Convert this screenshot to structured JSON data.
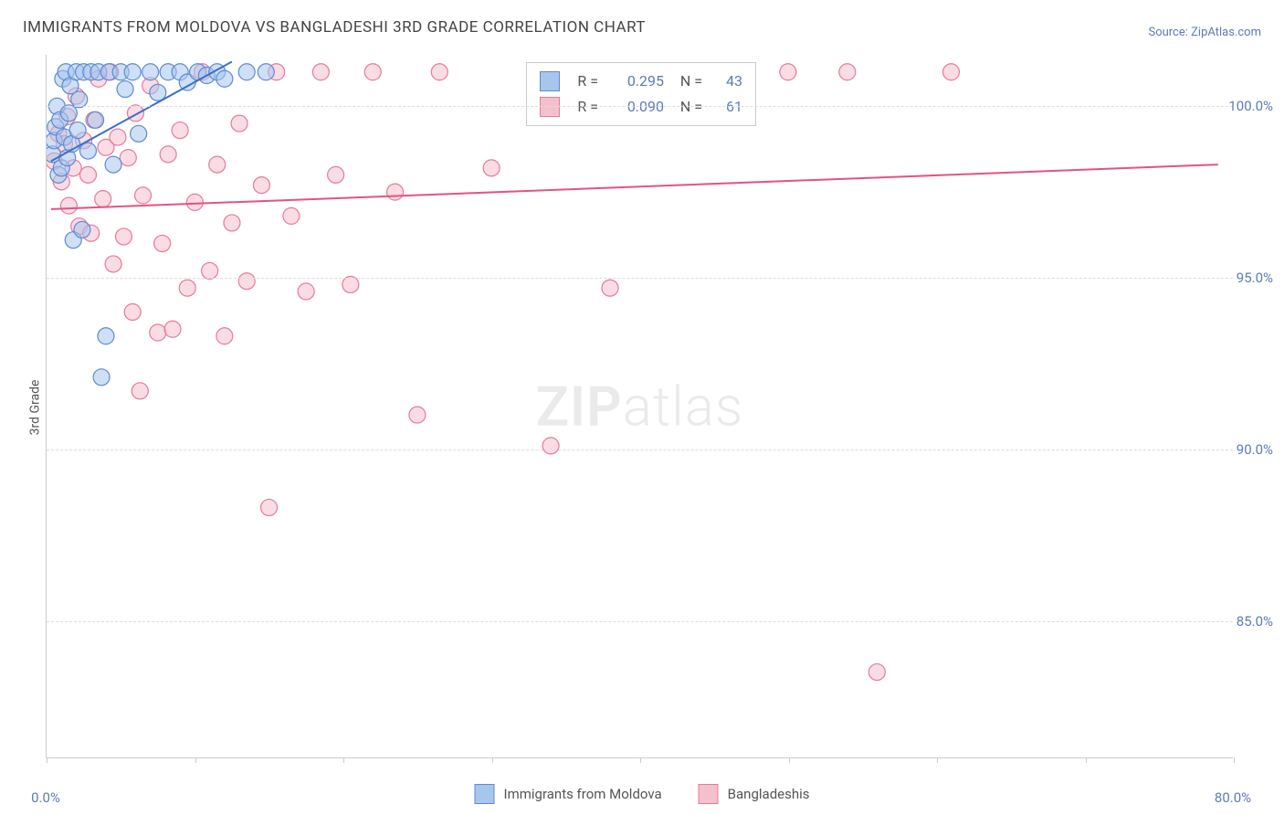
{
  "title": "IMMIGRANTS FROM MOLDOVA VS BANGLADESHI 3RD GRADE CORRELATION CHART",
  "source": "Source: ZipAtlas.com",
  "ylabel": "3rd Grade",
  "watermark_bold": "ZIP",
  "watermark_light": "atlas",
  "chart": {
    "type": "scatter",
    "xlim": [
      0,
      80
    ],
    "ylim": [
      81,
      101.5
    ],
    "x_ticks": [
      0,
      10,
      20,
      30,
      40,
      50,
      60,
      70,
      80
    ],
    "x_tick_labels": {
      "0": "0.0%",
      "80": "80.0%"
    },
    "y_gridlines": [
      85,
      90,
      95,
      100
    ],
    "y_tick_labels": {
      "85": "85.0%",
      "90": "90.0%",
      "95": "95.0%",
      "100": "100.0%"
    },
    "background_color": "#ffffff",
    "grid_color": "#dddddd",
    "axis_color": "#cccccc",
    "tick_label_color": "#5b7bb8",
    "marker_radius": 9,
    "marker_opacity": 0.55,
    "line_width": 2,
    "series": [
      {
        "name": "Immigrants from Moldova",
        "color_fill": "#a8c5ec",
        "color_stroke": "#5b8bd4",
        "line_color": "#3a6fc7",
        "R": "0.295",
        "N": "43",
        "regression": {
          "x1": 0.3,
          "y1": 98.4,
          "x2": 12.5,
          "y2": 101.3
        },
        "points": [
          [
            0.4,
            98.6
          ],
          [
            0.5,
            99.0
          ],
          [
            0.6,
            99.4
          ],
          [
            0.7,
            100.0
          ],
          [
            0.8,
            98.0
          ],
          [
            0.9,
            99.6
          ],
          [
            1.0,
            98.2
          ],
          [
            1.1,
            100.8
          ],
          [
            1.2,
            99.1
          ],
          [
            1.3,
            101.0
          ],
          [
            1.4,
            98.5
          ],
          [
            1.5,
            99.8
          ],
          [
            1.6,
            100.6
          ],
          [
            1.7,
            98.9
          ],
          [
            1.8,
            96.1
          ],
          [
            2.0,
            101.0
          ],
          [
            2.1,
            99.3
          ],
          [
            2.2,
            100.2
          ],
          [
            2.4,
            96.4
          ],
          [
            2.5,
            101.0
          ],
          [
            2.8,
            98.7
          ],
          [
            3.0,
            101.0
          ],
          [
            3.3,
            99.6
          ],
          [
            3.5,
            101.0
          ],
          [
            3.7,
            92.1
          ],
          [
            4.0,
            93.3
          ],
          [
            4.2,
            101.0
          ],
          [
            4.5,
            98.3
          ],
          [
            5.0,
            101.0
          ],
          [
            5.3,
            100.5
          ],
          [
            5.8,
            101.0
          ],
          [
            6.2,
            99.2
          ],
          [
            7.0,
            101.0
          ],
          [
            7.5,
            100.4
          ],
          [
            8.2,
            101.0
          ],
          [
            9.0,
            101.0
          ],
          [
            9.5,
            100.7
          ],
          [
            10.2,
            101.0
          ],
          [
            10.8,
            100.9
          ],
          [
            11.5,
            101.0
          ],
          [
            12.0,
            100.8
          ],
          [
            13.5,
            101.0
          ],
          [
            14.8,
            101.0
          ]
        ]
      },
      {
        "name": "Bangladeshis",
        "color_fill": "#f5c0ce",
        "color_stroke": "#e67a9b",
        "line_color": "#e6527f",
        "R": "0.090",
        "N": "61",
        "regression": {
          "x1": 0.3,
          "y1": 97.0,
          "x2": 79.0,
          "y2": 98.3
        },
        "points": [
          [
            0.5,
            98.4
          ],
          [
            0.8,
            99.2
          ],
          [
            1.0,
            97.8
          ],
          [
            1.2,
            98.9
          ],
          [
            1.4,
            99.7
          ],
          [
            1.5,
            97.1
          ],
          [
            1.8,
            98.2
          ],
          [
            2.0,
            100.3
          ],
          [
            2.2,
            96.5
          ],
          [
            2.5,
            99.0
          ],
          [
            2.8,
            98.0
          ],
          [
            3.0,
            96.3
          ],
          [
            3.2,
            99.6
          ],
          [
            3.5,
            100.8
          ],
          [
            3.8,
            97.3
          ],
          [
            4.0,
            98.8
          ],
          [
            4.3,
            101.0
          ],
          [
            4.5,
            95.4
          ],
          [
            4.8,
            99.1
          ],
          [
            5.2,
            96.2
          ],
          [
            5.5,
            98.5
          ],
          [
            5.8,
            94.0
          ],
          [
            6.0,
            99.8
          ],
          [
            6.3,
            91.7
          ],
          [
            6.5,
            97.4
          ],
          [
            7.0,
            100.6
          ],
          [
            7.5,
            93.4
          ],
          [
            7.8,
            96.0
          ],
          [
            8.2,
            98.6
          ],
          [
            8.5,
            93.5
          ],
          [
            9.0,
            99.3
          ],
          [
            9.5,
            94.7
          ],
          [
            10.0,
            97.2
          ],
          [
            10.5,
            101.0
          ],
          [
            11.0,
            95.2
          ],
          [
            11.5,
            98.3
          ],
          [
            12.0,
            93.3
          ],
          [
            12.5,
            96.6
          ],
          [
            13.0,
            99.5
          ],
          [
            13.5,
            94.9
          ],
          [
            14.5,
            97.7
          ],
          [
            15.0,
            88.3
          ],
          [
            15.5,
            101.0
          ],
          [
            16.5,
            96.8
          ],
          [
            17.5,
            94.6
          ],
          [
            18.5,
            101.0
          ],
          [
            19.5,
            98.0
          ],
          [
            20.5,
            94.8
          ],
          [
            22.0,
            101.0
          ],
          [
            23.5,
            97.5
          ],
          [
            25.0,
            91.0
          ],
          [
            26.5,
            101.0
          ],
          [
            30.0,
            98.2
          ],
          [
            33.0,
            101.0
          ],
          [
            34.0,
            90.1
          ],
          [
            38.0,
            94.7
          ],
          [
            42.0,
            101.0
          ],
          [
            50.0,
            101.0
          ],
          [
            54.0,
            101.0
          ],
          [
            56.0,
            83.5
          ],
          [
            61.0,
            101.0
          ]
        ]
      }
    ]
  },
  "legend_top": [
    {
      "series": 0,
      "R_label": "R =",
      "N_label": "N ="
    },
    {
      "series": 1,
      "R_label": "R =",
      "N_label": "N ="
    }
  ],
  "legend_bottom": [
    {
      "series": 0
    },
    {
      "series": 1
    }
  ]
}
